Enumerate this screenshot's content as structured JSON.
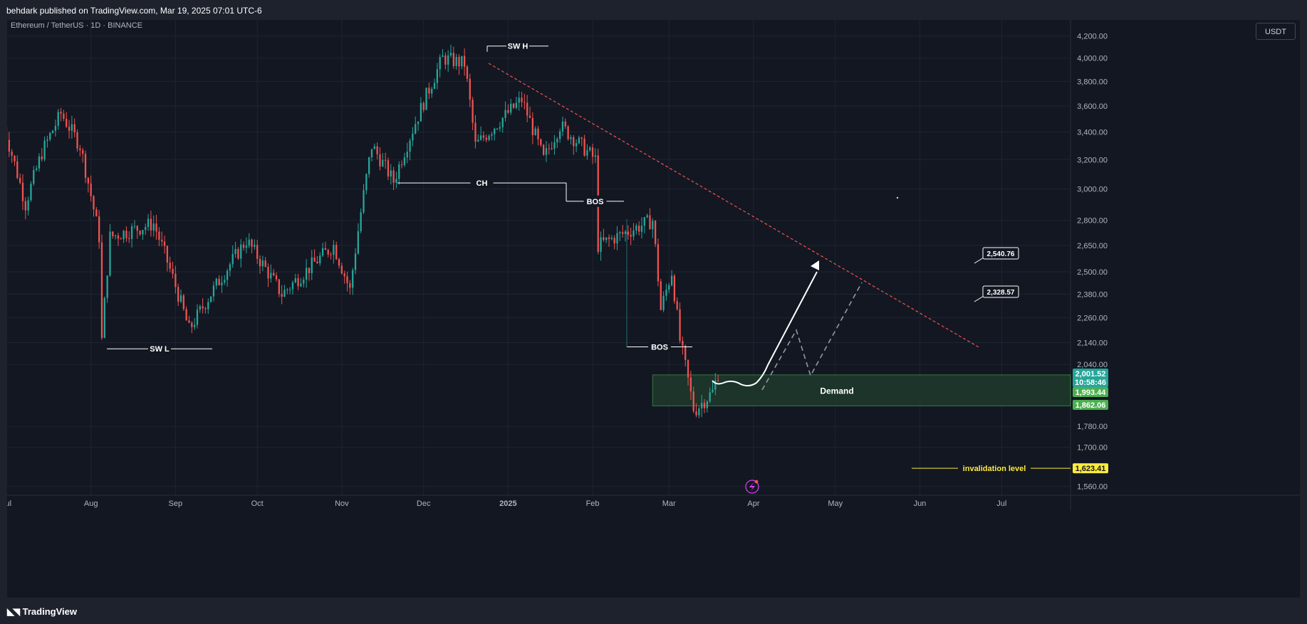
{
  "header": {
    "published_text": "behdark published on TradingView.com, Mar 19, 2025 07:01 UTC-6"
  },
  "symbol_legend": "Ethereum / TetherUS · 1D · BINANCE",
  "currency_button": "USDT",
  "footer": {
    "brand": "TradingView"
  },
  "colors": {
    "up": "#26a69a",
    "down": "#ef5350",
    "background": "#131722",
    "grid": "#1f2433",
    "demand_zone": "#1e3a2a",
    "trendline": "#ef5350",
    "invalidation": "#ffeb3b"
  },
  "chart_data": {
    "type": "candlestick",
    "symbol": "ETHUSDT",
    "timeframe": "1D",
    "x_ticks": [
      "Jul",
      "Aug",
      "Sep",
      "Oct",
      "Nov",
      "Dec",
      "2025",
      "Feb",
      "Mar",
      "Apr",
      "May",
      "Jun",
      "Jul"
    ],
    "x_tick_dates": [
      "2024-07-01",
      "2024-08-01",
      "2024-09-01",
      "2024-10-01",
      "2024-11-01",
      "2024-12-01",
      "2025-01-01",
      "2025-02-01",
      "2025-03-01",
      "2025-04-01",
      "2025-05-01",
      "2025-06-01",
      "2025-07-01"
    ],
    "y_ticks": [
      4200,
      4000,
      3800,
      3600,
      3400,
      3200,
      3000,
      2800,
      2650,
      2500,
      2380,
      2260,
      2140,
      2040,
      1780,
      1700,
      1560
    ],
    "y_tick_labels": [
      "4,200.00",
      "4,000.00",
      "3,800.00",
      "3,600.00",
      "3,400.00",
      "3,200.00",
      "3,000.00",
      "2,800.00",
      "2,650.00",
      "2,500.00",
      "2,380.00",
      "2,260.00",
      "2,140.00",
      "2,040.00",
      "1,780.00",
      "1,700.00",
      "1,560.00"
    ],
    "y_scale": "log",
    "date_range": [
      "2024-07-01",
      "2025-07-26"
    ],
    "price_range": [
      1530,
      4350
    ],
    "price_anchors": [
      [
        "2024-06-30",
        3440
      ],
      [
        "2024-07-08",
        2900
      ],
      [
        "2024-07-14",
        3250
      ],
      [
        "2024-07-21",
        3540
      ],
      [
        "2024-07-28",
        3300
      ],
      [
        "2024-08-04",
        2700
      ],
      [
        "2024-08-05",
        2150
      ],
      [
        "2024-08-08",
        2700
      ],
      [
        "2024-08-24",
        2780
      ],
      [
        "2024-09-06",
        2200
      ],
      [
        "2024-09-27",
        2680
      ],
      [
        "2024-10-10",
        2380
      ],
      [
        "2024-10-29",
        2650
      ],
      [
        "2024-11-04",
        2400
      ],
      [
        "2024-11-12",
        3300
      ],
      [
        "2024-11-20",
        3050
      ],
      [
        "2024-12-08",
        4000
      ],
      [
        "2024-12-16",
        3950
      ],
      [
        "2024-12-20",
        3300
      ],
      [
        "2025-01-06",
        3650
      ],
      [
        "2025-01-14",
        3200
      ],
      [
        "2025-01-20",
        3450
      ],
      [
        "2025-02-02",
        3200
      ],
      [
        "2025-02-03",
        2650
      ],
      [
        "2025-02-23",
        2800
      ],
      [
        "2025-02-26",
        2300
      ],
      [
        "2025-03-02",
        2500
      ],
      [
        "2025-03-05",
        2150
      ],
      [
        "2025-03-10",
        1850
      ],
      [
        "2025-03-11",
        1850
      ],
      [
        "2025-03-17",
        1920
      ],
      [
        "2025-03-19",
        2001
      ]
    ],
    "labels": [
      {
        "text": "SW H",
        "date": "2024-12-16",
        "price": 4107
      },
      {
        "text": "SW L",
        "date": "2024-08-05",
        "price": 2111
      },
      {
        "text": "CH",
        "date": "2024-11-12",
        "price": 3040
      },
      {
        "text": "BOS",
        "date": "2025-01-14",
        "price": 2920
      },
      {
        "text": "BOS",
        "date": "2025-02-03",
        "price": 2120
      }
    ],
    "demand_zone": {
      "label": "Demand",
      "top": 1993.44,
      "bottom": 1862.06
    },
    "invalidation": {
      "label": "invalidation level",
      "price": 1623.41
    },
    "price_tags": [
      {
        "label": "2,001.52",
        "countdown": "10:58:46",
        "color": "#26a69a"
      },
      {
        "label": "1,993.44",
        "color": "#4caf50"
      },
      {
        "label": "1,862.06",
        "color": "#4caf50"
      },
      {
        "label": "1,623.41",
        "color": "#ffeb3b"
      }
    ],
    "targets": [
      "2,540.76",
      "2,328.57"
    ],
    "grid": true
  }
}
